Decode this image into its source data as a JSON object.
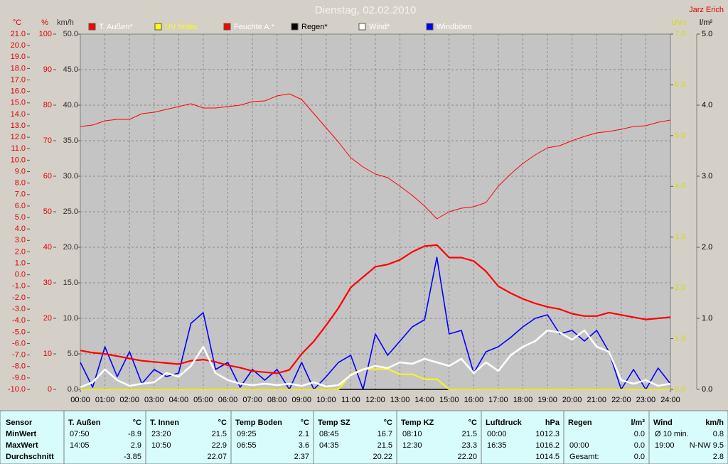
{
  "chart_data": {
    "type": "line",
    "title": "Dienstag, 02.02.2010",
    "author": "Jarz Erich",
    "ylabel": "°C",
    "y2label": "%",
    "y3label": "km/h",
    "y4label": "UV-I",
    "y5label": "l/m²",
    "x": [
      0,
      0.5,
      1,
      1.5,
      2,
      2.5,
      3,
      3.5,
      4,
      4.5,
      5,
      5.5,
      6,
      6.5,
      7,
      7.5,
      8,
      8.5,
      9,
      9.5,
      10,
      10.5,
      11,
      11.5,
      12,
      12.5,
      13,
      13.5,
      14,
      14.5,
      15,
      15.5,
      16,
      16.5,
      17,
      17.5,
      18,
      18.5,
      19,
      19.5,
      20,
      20.5,
      21,
      21.5,
      22,
      22.5,
      23,
      23.5,
      24
    ],
    "xlim": [
      0,
      24
    ],
    "xticks": [
      {
        "value": 0,
        "label": "00:00"
      },
      {
        "value": 1,
        "label": "01:00"
      },
      {
        "value": 2,
        "label": "02:00"
      },
      {
        "value": 3,
        "label": "03:00"
      },
      {
        "value": 4,
        "label": "04:00"
      },
      {
        "value": 5,
        "label": "05:00"
      },
      {
        "value": 6,
        "label": "06:00"
      },
      {
        "value": 7,
        "label": "07:00"
      },
      {
        "value": 8,
        "label": "08:00"
      },
      {
        "value": 9,
        "label": "09:00"
      },
      {
        "value": 10,
        "label": "10:00"
      },
      {
        "value": 11,
        "label": "11:00"
      },
      {
        "value": 12,
        "label": "12:00"
      },
      {
        "value": 13,
        "label": "13:00"
      },
      {
        "value": 14,
        "label": "14:00"
      },
      {
        "value": 15,
        "label": "15:00"
      },
      {
        "value": 16,
        "label": "16:00"
      },
      {
        "value": 17,
        "label": "17:00"
      },
      {
        "value": 18,
        "label": "18:00"
      },
      {
        "value": 19,
        "label": "19:00"
      },
      {
        "value": 20,
        "label": "20:00"
      },
      {
        "value": 21,
        "label": "21:00"
      },
      {
        "value": 22,
        "label": "22:00"
      },
      {
        "value": 23,
        "label": "23:00"
      },
      {
        "value": 24,
        "label": "24:00"
      }
    ],
    "ylim": [
      -10,
      21
    ],
    "yticks": [
      {
        "value": -10,
        "label": "-10.0"
      },
      {
        "value": -9,
        "label": "-9.0"
      },
      {
        "value": -8,
        "label": "-8.0"
      },
      {
        "value": -7,
        "label": "-7.0"
      },
      {
        "value": -6,
        "label": "-6.0"
      },
      {
        "value": -5,
        "label": "-5.0"
      },
      {
        "value": -4,
        "label": "-4.0"
      },
      {
        "value": -3,
        "label": "-3.0"
      },
      {
        "value": -2,
        "label": "-2.0"
      },
      {
        "value": -1,
        "label": "-1.0"
      },
      {
        "value": 0,
        "label": "0.0"
      },
      {
        "value": 1,
        "label": "1.0"
      },
      {
        "value": 2,
        "label": "2.0"
      },
      {
        "value": 3,
        "label": "3.0"
      },
      {
        "value": 4,
        "label": "4.0"
      },
      {
        "value": 5,
        "label": "5.0"
      },
      {
        "value": 6,
        "label": "6.0"
      },
      {
        "value": 7,
        "label": "7.0"
      },
      {
        "value": 8,
        "label": "8.0"
      },
      {
        "value": 9,
        "label": "9.0"
      },
      {
        "value": 10,
        "label": "10.0"
      },
      {
        "value": 11,
        "label": "11.0"
      },
      {
        "value": 12,
        "label": "12.0"
      },
      {
        "value": 13,
        "label": "13.0"
      },
      {
        "value": 14,
        "label": "14.0"
      },
      {
        "value": 15,
        "label": "15.0"
      },
      {
        "value": 16,
        "label": "16.0"
      },
      {
        "value": 17,
        "label": "17.0"
      },
      {
        "value": 18,
        "label": "18.0"
      },
      {
        "value": 19,
        "label": "19.0"
      },
      {
        "value": 20,
        "label": "20.0"
      },
      {
        "value": 21,
        "label": "21.0"
      }
    ],
    "y2lim": [
      0,
      100
    ],
    "y2ticks": [
      0,
      10,
      20,
      30,
      40,
      50,
      60,
      70,
      80,
      90,
      100
    ],
    "y3lim": [
      0,
      50
    ],
    "y3ticks": [
      {
        "value": 0,
        "label": "0.0"
      },
      {
        "value": 5,
        "label": "5.0"
      },
      {
        "value": 10,
        "label": "10.0"
      },
      {
        "value": 15,
        "label": "15.0"
      },
      {
        "value": 20,
        "label": "20.0"
      },
      {
        "value": 25,
        "label": "25.0"
      },
      {
        "value": 30,
        "label": "30.0"
      },
      {
        "value": 35,
        "label": "35.0"
      },
      {
        "value": 40,
        "label": "40.0"
      },
      {
        "value": 45,
        "label": "45.0"
      },
      {
        "value": 50,
        "label": "50.0"
      }
    ],
    "y4lim": [
      0,
      7
    ],
    "y4ticks": [
      {
        "value": 0,
        "label": "0.0"
      },
      {
        "value": 1,
        "label": "1.0"
      },
      {
        "value": 2,
        "label": "2.0"
      },
      {
        "value": 3,
        "label": "3.0"
      },
      {
        "value": 4,
        "label": "4.0"
      },
      {
        "value": 5,
        "label": "5.0"
      },
      {
        "value": 6,
        "label": "6.0"
      },
      {
        "value": 7,
        "label": "7.0"
      }
    ],
    "y5lim": [
      0,
      5
    ],
    "y5ticks": [
      {
        "value": 0,
        "label": "0.0"
      },
      {
        "value": 1,
        "label": "1.0"
      },
      {
        "value": 2,
        "label": "2.0"
      },
      {
        "value": 3,
        "label": "3.0"
      },
      {
        "value": 4,
        "label": "4.0"
      },
      {
        "value": 5,
        "label": "5.0"
      }
    ],
    "grid": true,
    "series": [
      {
        "name": "T. Außen*",
        "color": "#ff0000",
        "axis": "y",
        "values": [
          -6.6,
          -6.8,
          -6.9,
          -7.1,
          -7.3,
          -7.5,
          -7.6,
          -7.7,
          -7.8,
          -7.5,
          -7.4,
          -7.6,
          -7.9,
          -8.1,
          -8.4,
          -8.5,
          -8.6,
          -8.3,
          -6.9,
          -5.8,
          -4.4,
          -2.9,
          -1.1,
          -0.2,
          0.7,
          0.9,
          1.3,
          2.0,
          2.5,
          2.6,
          1.5,
          1.5,
          1.2,
          0.3,
          -1.0,
          -1.6,
          -2.1,
          -2.5,
          -2.8,
          -3.0,
          -3.4,
          -3.6,
          -3.6,
          -3.3,
          -3.5,
          -3.7,
          -3.9,
          -3.8,
          -3.7
        ]
      },
      {
        "name": "UV Index",
        "color": "#ffff00",
        "axis": "y4",
        "values": [
          0,
          0,
          0,
          0,
          0,
          0,
          0,
          0,
          0,
          0,
          0,
          0,
          0,
          0,
          0,
          0,
          0,
          0,
          0,
          0,
          0,
          0,
          0.3,
          0.4,
          0.4,
          0.4,
          0.3,
          0.3,
          0.2,
          0.2,
          0,
          0,
          0,
          0,
          0,
          0,
          0,
          0,
          0,
          0,
          0,
          0,
          0,
          0,
          0,
          0,
          0,
          0,
          0
        ]
      },
      {
        "name": "Feuchte A.*",
        "color": "#ff0000",
        "axis": "y2",
        "values": [
          74,
          74.4,
          75.6,
          76,
          76,
          77.6,
          78,
          78.8,
          79.6,
          80.4,
          79.2,
          79.2,
          79.6,
          80,
          81,
          81.2,
          82.6,
          83.2,
          81.6,
          77.6,
          73.6,
          69.6,
          65.2,
          62.6,
          60.6,
          59.6,
          57.2,
          54.6,
          51.6,
          48,
          50,
          51,
          51.4,
          52.6,
          57.2,
          60.6,
          63.6,
          66,
          68,
          68.6,
          70,
          71.2,
          72.2,
          72.6,
          73.2,
          74,
          74.2,
          75.2,
          75.8
        ]
      },
      {
        "name": "Regen*",
        "color": "#000000",
        "axis": "y5",
        "values": [
          0,
          0,
          0,
          0,
          0,
          0,
          0,
          0,
          0,
          0,
          0,
          0,
          0,
          0,
          0,
          0,
          0,
          0,
          0,
          0,
          0,
          0,
          0,
          0,
          0,
          0,
          0,
          0,
          0,
          0,
          0,
          0,
          0,
          0,
          0,
          0,
          0,
          0,
          0,
          0,
          0,
          0,
          0,
          0,
          0,
          0,
          0,
          0,
          0
        ]
      },
      {
        "name": "Wind*",
        "color": "#ffffff",
        "axis": "y3",
        "values": [
          0.3,
          1.0,
          2.8,
          1.3,
          0.5,
          0.8,
          1.0,
          2.3,
          1.8,
          3.3,
          6.0,
          2.3,
          1.3,
          0.8,
          0.6,
          0.8,
          0.6,
          0.8,
          0.5,
          1.0,
          0.4,
          0.6,
          2.0,
          2.8,
          3.3,
          3.0,
          3.8,
          3.6,
          4.3,
          3.8,
          3.3,
          4.3,
          2.3,
          3.8,
          2.6,
          4.8,
          6.0,
          6.8,
          8.3,
          8.0,
          7.0,
          8.3,
          6.0,
          5.3,
          1.3,
          0.8,
          1.3,
          0.5,
          0.8
        ]
      },
      {
        "name": "Windböen",
        "color": "#0000ff",
        "axis": "y3",
        "values": [
          3.8,
          0.3,
          6.0,
          1.8,
          5.3,
          0.8,
          2.8,
          1.8,
          2.3,
          9.3,
          10.8,
          2.8,
          3.8,
          0.3,
          2.8,
          1.3,
          2.8,
          0,
          3.8,
          0,
          1.8,
          3.8,
          4.8,
          0,
          7.8,
          4.8,
          6.8,
          8.8,
          9.8,
          18.6,
          7.8,
          8.3,
          2.3,
          5.3,
          6.0,
          7.3,
          8.8,
          10.0,
          10.5,
          7.8,
          8.3,
          6.8,
          8.3,
          5.3,
          0,
          2.8,
          0,
          3.0,
          0.8
        ]
      }
    ]
  },
  "table": {
    "row_labels": [
      "Sensor",
      "MinWert",
      "MaxWert",
      "Durchschnitt"
    ],
    "columns": [
      {
        "title": "T. Außen",
        "unit": "°C",
        "rows": [
          {
            "time": "07:50",
            "value": "-8.9"
          },
          {
            "time": "14:05",
            "value": "2.9"
          },
          {
            "value": "-3.85"
          }
        ]
      },
      {
        "title": "T. Innen",
        "unit": "°C",
        "rows": [
          {
            "time": "23:20",
            "value": "21.5"
          },
          {
            "time": "10:50",
            "value": "22.9"
          },
          {
            "value": "22.07"
          }
        ]
      },
      {
        "title": "Temp Boden",
        "unit": "°C",
        "rows": [
          {
            "time": "09:25",
            "value": "2.1"
          },
          {
            "time": "06:55",
            "value": "3.6"
          },
          {
            "value": "2.37"
          }
        ]
      },
      {
        "title": "Temp SZ",
        "unit": "°C",
        "rows": [
          {
            "time": "08:45",
            "value": "16.7"
          },
          {
            "time": "04:35",
            "value": "21.5"
          },
          {
            "value": "20.22"
          }
        ]
      },
      {
        "title": "Temp KZ",
        "unit": "°C",
        "rows": [
          {
            "time": "08:10",
            "value": "21.5"
          },
          {
            "time": "12:30",
            "value": "23.3"
          },
          {
            "value": "22.20"
          }
        ]
      },
      {
        "title": "Luftdruck",
        "unit": "hPa",
        "rows": [
          {
            "time": "00:00",
            "value": "1012.3"
          },
          {
            "time": "16:35",
            "value": "1016.2"
          },
          {
            "value": "1014.5"
          }
        ]
      },
      {
        "title": "Regen",
        "unit": "l/m²",
        "rows": [
          {
            "value": "0.0"
          },
          {
            "time": "00:00",
            "value": "0.0"
          },
          {
            "time": "Gesamt:",
            "value": "0.0"
          }
        ]
      },
      {
        "title": "Wind",
        "unit": "km/h",
        "rows": [
          {
            "time": "Ø 10 min.",
            "value": "0.8"
          },
          {
            "time": "19:00",
            "value": "N-NW 9.5"
          },
          {
            "value": "2.8"
          }
        ]
      }
    ]
  }
}
